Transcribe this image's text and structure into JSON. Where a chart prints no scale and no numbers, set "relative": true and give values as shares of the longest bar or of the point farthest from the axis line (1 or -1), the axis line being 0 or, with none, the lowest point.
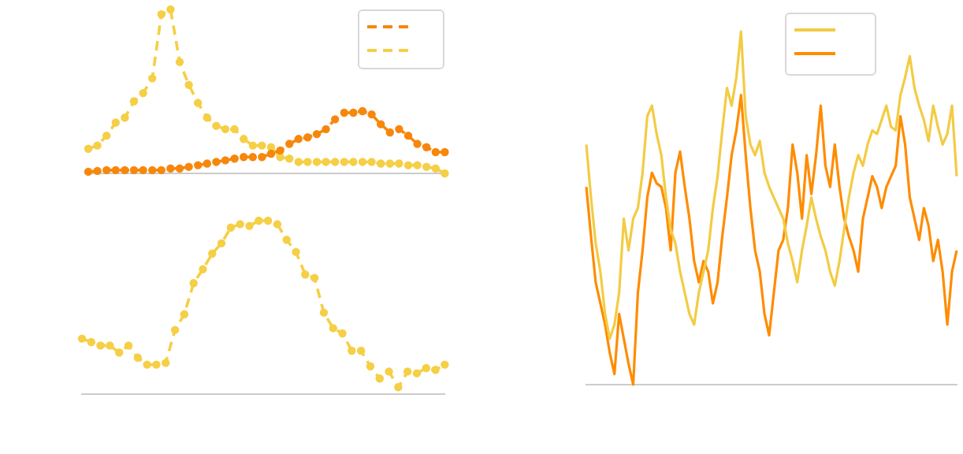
{
  "chart_data": [
    {
      "type": "line",
      "relative": true,
      "marker": "circle",
      "line_style": "dashed",
      "categories": [
        null,
        null,
        null,
        null,
        null,
        null,
        null,
        null,
        null,
        null,
        null,
        null,
        null,
        null,
        null,
        null,
        null,
        null,
        null,
        null,
        null,
        null,
        null,
        null,
        null,
        null,
        null,
        null,
        null,
        null,
        null,
        null,
        null,
        null,
        null,
        null,
        null,
        null,
        null,
        null
      ],
      "series": [
        {
          "color": "#f7870c",
          "values": [
            0.01,
            0.015,
            0.02,
            0.02,
            0.02,
            0.02,
            0.02,
            0.02,
            0.02,
            0.03,
            0.03,
            0.04,
            0.05,
            0.06,
            0.07,
            0.08,
            0.09,
            0.1,
            0.1,
            0.1,
            0.12,
            0.14,
            0.18,
            0.21,
            0.22,
            0.24,
            0.27,
            0.33,
            0.37,
            0.37,
            0.38,
            0.36,
            0.3,
            0.25,
            0.27,
            0.23,
            0.18,
            0.16,
            0.13,
            0.13
          ]
        },
        {
          "color": "#f5cf45",
          "values": [
            0.15,
            0.17,
            0.23,
            0.31,
            0.34,
            0.44,
            0.49,
            0.58,
            0.97,
            1,
            0.68,
            0.54,
            0.43,
            0.34,
            0.29,
            0.27,
            0.27,
            0.21,
            0.17,
            0.17,
            0.16,
            0.1,
            0.09,
            0.07,
            0.07,
            0.07,
            0.07,
            0.07,
            0.07,
            0.07,
            0.07,
            0.07,
            0.06,
            0.06,
            0.06,
            0.05,
            0.05,
            0.04,
            0.03,
            0
          ]
        }
      ]
    },
    {
      "type": "line",
      "relative": true,
      "marker": "circle",
      "line_style": "dashed",
      "categories": [
        null,
        null,
        null,
        null,
        null,
        null,
        null,
        null,
        null,
        null,
        null,
        null,
        null,
        null,
        null,
        null,
        null,
        null,
        null,
        null,
        null,
        null,
        null,
        null,
        null,
        null,
        null,
        null,
        null,
        null,
        null,
        null,
        null,
        null,
        null,
        null,
        null,
        null,
        null,
        null
      ],
      "series": [
        {
          "color": "#f5cf45",
          "values": [
            0.32,
            0.3,
            0.28,
            0.28,
            0.24,
            0.28,
            0.21,
            0.17,
            0.17,
            0.18,
            0.37,
            0.46,
            0.64,
            0.72,
            0.81,
            0.87,
            0.96,
            0.98,
            0.97,
            1,
            1,
            0.98,
            0.89,
            0.82,
            0.69,
            0.67,
            0.47,
            0.38,
            0.35,
            0.25,
            0.25,
            0.16,
            0.09,
            0.13,
            0.04,
            0.13,
            0.12,
            0.15,
            0.14,
            0.17
          ]
        }
      ]
    },
    {
      "type": "line",
      "relative": true,
      "marker": "none",
      "line_style": "solid",
      "categories": [
        null,
        null,
        null,
        null,
        null,
        null,
        null,
        null,
        null,
        null,
        null,
        null,
        null,
        null,
        null,
        null,
        null,
        null,
        null,
        null,
        null,
        null,
        null,
        null,
        null,
        null,
        null,
        null,
        null,
        null,
        null,
        null,
        null,
        null,
        null,
        null,
        null,
        null,
        null,
        null,
        null,
        null,
        null,
        null,
        null,
        null,
        null,
        null,
        null,
        null,
        null,
        null,
        null,
        null,
        null,
        null,
        null,
        null,
        null,
        null,
        null,
        null,
        null,
        null,
        null,
        null,
        null,
        null,
        null,
        null,
        null,
        null,
        null,
        null,
        null,
        null,
        null,
        null,
        null,
        null
      ],
      "series": [
        {
          "color": "#f2cc45",
          "values": [
            0.68,
            0.53,
            0.4,
            0.32,
            0.2,
            0.13,
            0.17,
            0.26,
            0.47,
            0.38,
            0.47,
            0.5,
            0.6,
            0.76,
            0.79,
            0.71,
            0.65,
            0.53,
            0.44,
            0.4,
            0.32,
            0.26,
            0.2,
            0.17,
            0.26,
            0.32,
            0.38,
            0.5,
            0.59,
            0.72,
            0.84,
            0.79,
            0.87,
            1,
            0.76,
            0.68,
            0.65,
            0.69,
            0.6,
            0.56,
            0.53,
            0.5,
            0.47,
            0.4,
            0.35,
            0.29,
            0.38,
            0.45,
            0.53,
            0.47,
            0.42,
            0.38,
            0.32,
            0.28,
            0.35,
            0.44,
            0.53,
            0.6,
            0.65,
            0.62,
            0.68,
            0.72,
            0.71,
            0.75,
            0.79,
            0.73,
            0.72,
            0.82,
            0.87,
            0.93,
            0.84,
            0.79,
            0.75,
            0.69,
            0.79,
            0.73,
            0.68,
            0.71,
            0.79,
            0.59
          ]
        },
        {
          "color": "#ff8c00",
          "values": [
            0.56,
            0.42,
            0.29,
            0.23,
            0.17,
            0.09,
            0.03,
            0.2,
            0.13,
            0.06,
            0,
            0.26,
            0.38,
            0.53,
            0.6,
            0.57,
            0.56,
            0.5,
            0.38,
            0.6,
            0.66,
            0.56,
            0.47,
            0.35,
            0.29,
            0.35,
            0.32,
            0.23,
            0.29,
            0.42,
            0.53,
            0.65,
            0.72,
            0.82,
            0.65,
            0.5,
            0.38,
            0.32,
            0.2,
            0.14,
            0.26,
            0.38,
            0.41,
            0.5,
            0.68,
            0.6,
            0.47,
            0.65,
            0.54,
            0.65,
            0.79,
            0.62,
            0.56,
            0.68,
            0.56,
            0.47,
            0.42,
            0.38,
            0.32,
            0.47,
            0.53,
            0.59,
            0.56,
            0.5,
            0.56,
            0.59,
            0.62,
            0.76,
            0.68,
            0.53,
            0.47,
            0.41,
            0.5,
            0.45,
            0.35,
            0.41,
            0.32,
            0.17,
            0.32,
            0.38
          ]
        }
      ]
    }
  ]
}
